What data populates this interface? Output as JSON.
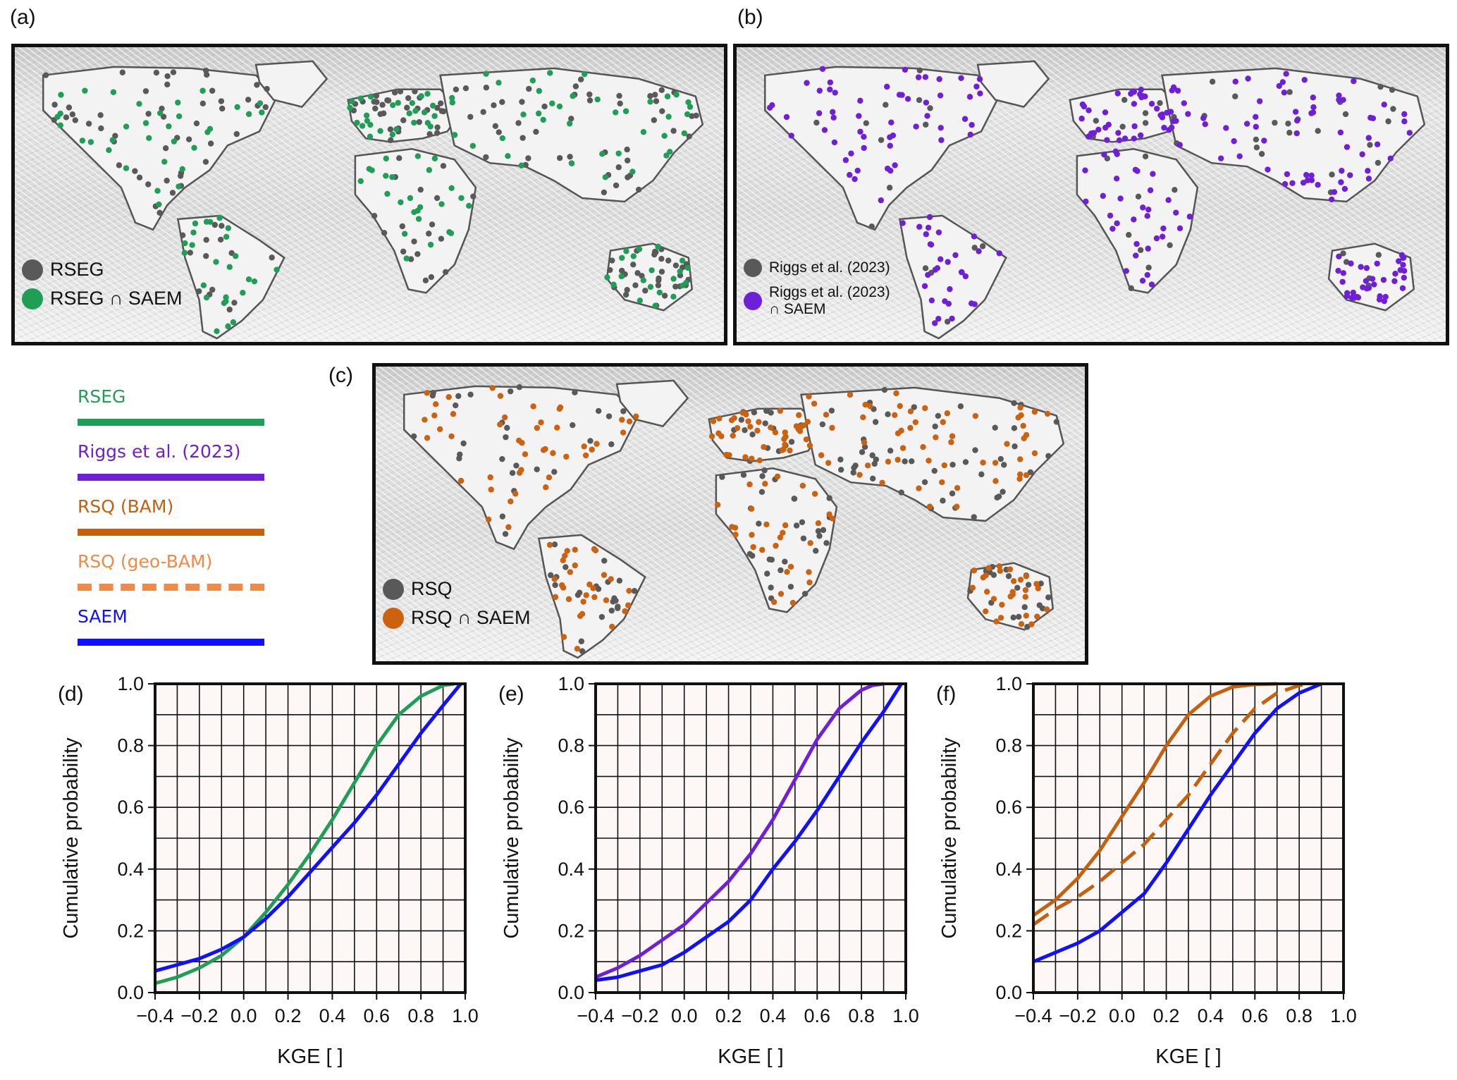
{
  "panels": {
    "a": {
      "letter": "(a)",
      "legend": [
        {
          "label": "RSEG",
          "color": "#595959"
        },
        {
          "label": "RSEG ∩ SAEM",
          "color": "#1f9e55"
        }
      ]
    },
    "b": {
      "letter": "(b)",
      "legend": [
        {
          "label": "Riggs et al. (2023)",
          "color": "#595959"
        },
        {
          "label": "Riggs et al. (2023)\n∩ SAEM",
          "color": "#6f1fd8"
        }
      ]
    },
    "c": {
      "letter": "(c)",
      "legend": [
        {
          "label": "RSQ",
          "color": "#595959"
        },
        {
          "label": "RSQ ∩ SAEM",
          "color": "#cc6210"
        }
      ]
    }
  },
  "line_legend": [
    {
      "label": "RSEG",
      "color": "#1f9e55",
      "dash": false
    },
    {
      "label": "Riggs et al. (2023)",
      "color": "#6f1fd8",
      "dash": false
    },
    {
      "label": "RSQ (BAM)",
      "color": "#c5600f",
      "dash": false
    },
    {
      "label": "RSQ (geo-BAM)",
      "color": "#ef8a48",
      "dash": true
    },
    {
      "label": "SAEM",
      "color": "#1010ff",
      "dash": false
    }
  ],
  "colors": {
    "rseg": "#1f9e55",
    "riggs": "#6f1fd8",
    "rsq": "#c5600f",
    "saem": "#1010ff",
    "grey_dots": "#595959",
    "plot_bg": "#fdf8f6"
  },
  "chart_data": [
    {
      "type": "line",
      "panel": "(d)",
      "xlabel": "KGE [ ]",
      "ylabel": "Cumulative probability",
      "xlim": [
        -0.4,
        1.0
      ],
      "ylim": [
        0.0,
        1.0
      ],
      "xticks": [
        "−0.4",
        "−0.2",
        "0.0",
        "0.2",
        "0.4",
        "0.6",
        "0.8",
        "1.0"
      ],
      "yticks": [
        "0.0",
        "0.2",
        "0.4",
        "0.6",
        "0.8",
        "1.0"
      ],
      "grid": true,
      "series": [
        {
          "name": "RSEG",
          "color": "#1f9e55",
          "dash": false,
          "x": [
            -0.4,
            -0.3,
            -0.2,
            -0.1,
            0.0,
            0.1,
            0.2,
            0.3,
            0.4,
            0.5,
            0.6,
            0.7,
            0.8,
            0.9,
            0.95
          ],
          "y": [
            0.03,
            0.05,
            0.08,
            0.12,
            0.18,
            0.26,
            0.35,
            0.45,
            0.56,
            0.68,
            0.8,
            0.9,
            0.96,
            0.995,
            1.0
          ]
        },
        {
          "name": "SAEM",
          "color": "#1010ff",
          "dash": false,
          "x": [
            -0.4,
            -0.3,
            -0.2,
            -0.1,
            0.0,
            0.1,
            0.2,
            0.3,
            0.4,
            0.5,
            0.6,
            0.7,
            0.8,
            0.9,
            0.98
          ],
          "y": [
            0.07,
            0.09,
            0.11,
            0.14,
            0.18,
            0.24,
            0.31,
            0.39,
            0.47,
            0.55,
            0.64,
            0.74,
            0.84,
            0.93,
            1.0
          ]
        }
      ]
    },
    {
      "type": "line",
      "panel": "(e)",
      "xlabel": "KGE [ ]",
      "ylabel": "Cumulative probability",
      "xlim": [
        -0.4,
        1.0
      ],
      "ylim": [
        0.0,
        1.0
      ],
      "xticks": [
        "−0.4",
        "−0.2",
        "0.0",
        "0.2",
        "0.4",
        "0.6",
        "0.8",
        "1.0"
      ],
      "yticks": [
        "0.0",
        "0.2",
        "0.4",
        "0.6",
        "0.8",
        "1.0"
      ],
      "grid": true,
      "series": [
        {
          "name": "Riggs et al. (2023)",
          "color": "#6f1fd8",
          "dash": false,
          "x": [
            -0.4,
            -0.3,
            -0.2,
            -0.1,
            0.0,
            0.1,
            0.2,
            0.3,
            0.4,
            0.5,
            0.6,
            0.7,
            0.8,
            0.85,
            0.9
          ],
          "y": [
            0.05,
            0.08,
            0.12,
            0.17,
            0.22,
            0.29,
            0.36,
            0.45,
            0.56,
            0.69,
            0.82,
            0.92,
            0.98,
            0.995,
            1.0
          ]
        },
        {
          "name": "SAEM",
          "color": "#1010ff",
          "dash": false,
          "x": [
            -0.4,
            -0.3,
            -0.2,
            -0.1,
            0.0,
            0.1,
            0.2,
            0.3,
            0.4,
            0.5,
            0.6,
            0.7,
            0.8,
            0.9,
            0.98
          ],
          "y": [
            0.04,
            0.05,
            0.07,
            0.09,
            0.13,
            0.18,
            0.23,
            0.3,
            0.4,
            0.49,
            0.59,
            0.7,
            0.81,
            0.91,
            1.0
          ]
        }
      ]
    },
    {
      "type": "line",
      "panel": "(f)",
      "xlabel": "KGE [ ]",
      "ylabel": "Cumulative probability",
      "xlim": [
        -0.4,
        1.0
      ],
      "ylim": [
        0.0,
        1.0
      ],
      "xticks": [
        "−0.4",
        "−0.2",
        "0.0",
        "0.2",
        "0.4",
        "0.6",
        "0.8",
        "1.0"
      ],
      "yticks": [
        "0.0",
        "0.2",
        "0.4",
        "0.6",
        "0.8",
        "1.0"
      ],
      "grid": true,
      "series": [
        {
          "name": "RSQ (BAM)",
          "color": "#c5600f",
          "dash": false,
          "x": [
            -0.4,
            -0.3,
            -0.2,
            -0.1,
            0.0,
            0.1,
            0.2,
            0.3,
            0.4,
            0.5,
            0.6,
            0.7
          ],
          "y": [
            0.25,
            0.3,
            0.37,
            0.46,
            0.57,
            0.68,
            0.8,
            0.9,
            0.96,
            0.99,
            0.998,
            1.0
          ]
        },
        {
          "name": "RSQ (geo-BAM)",
          "color": "#c5600f",
          "dash": true,
          "x": [
            -0.4,
            -0.3,
            -0.2,
            -0.1,
            0.0,
            0.1,
            0.2,
            0.3,
            0.4,
            0.5,
            0.6,
            0.7,
            0.8,
            0.85
          ],
          "y": [
            0.22,
            0.27,
            0.31,
            0.36,
            0.42,
            0.48,
            0.56,
            0.64,
            0.74,
            0.84,
            0.92,
            0.97,
            0.995,
            1.0
          ]
        },
        {
          "name": "SAEM",
          "color": "#1010ff",
          "dash": false,
          "x": [
            -0.4,
            -0.3,
            -0.2,
            -0.1,
            0.0,
            0.1,
            0.2,
            0.3,
            0.4,
            0.5,
            0.6,
            0.7,
            0.8,
            0.9
          ],
          "y": [
            0.1,
            0.13,
            0.16,
            0.2,
            0.26,
            0.32,
            0.42,
            0.53,
            0.64,
            0.74,
            0.84,
            0.92,
            0.97,
            1.0
          ]
        }
      ]
    }
  ]
}
